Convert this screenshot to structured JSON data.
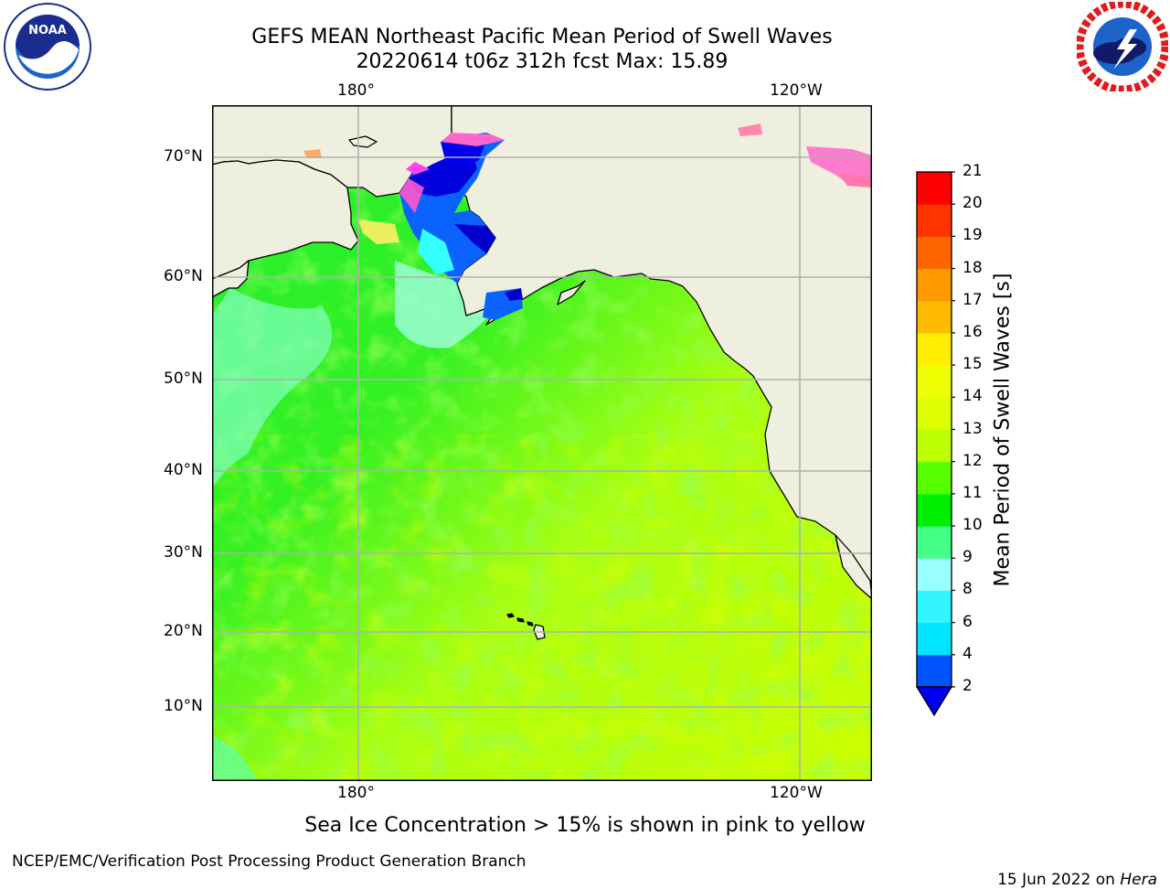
{
  "header": {
    "title_line1": "GEFS MEAN Northeast Pacific Mean Period of Swell Waves",
    "title_line2": "20220614 t06z 312h fcst   Max: 15.89"
  },
  "logos": {
    "left": {
      "text": "NOAA",
      "ring_text": "NATIONAL OCEANIC AND ATMOSPHERIC ADMINISTRATION · U.S. DEPARTMENT OF COMMERCE"
    },
    "right": {
      "ring_text": "NATIONAL WEATHER SERVICE"
    }
  },
  "map": {
    "lon_labels": [
      "180°",
      "120°W"
    ],
    "lat_labels": [
      "70°N",
      "60°N",
      "50°N",
      "40°N",
      "30°N",
      "20°N",
      "10°N"
    ],
    "land_color": "#efefdf",
    "grid_color": "#b0b0b0"
  },
  "colorbar": {
    "label": "Mean Period of Swell Waves [s]",
    "ticks": [
      "2",
      "4",
      "6",
      "8",
      "9",
      "10",
      "11",
      "12",
      "13",
      "14",
      "15",
      "16",
      "17",
      "18",
      "19",
      "20",
      "21"
    ],
    "colors": [
      "#0055ff",
      "#00e5ff",
      "#33f5ff",
      "#99ffff",
      "#44ff88",
      "#00ee00",
      "#55ff00",
      "#bbff00",
      "#ddff00",
      "#eeff00",
      "#ffee00",
      "#ffbb00",
      "#ff9900",
      "#ff6600",
      "#ff3300",
      "#ff0000"
    ],
    "extend_color": "#0000ee"
  },
  "notes": {
    "sea_ice": "Sea Ice Concentration > 15% is shown in pink to yellow"
  },
  "footer": {
    "left": "NCEP/EMC/Verification Post Processing Product Generation Branch",
    "date": "15 Jun 2022 on ",
    "machine": "Hera"
  }
}
